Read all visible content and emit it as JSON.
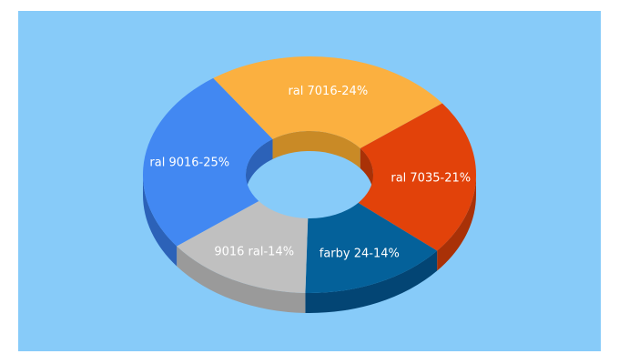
{
  "chart_data": {
    "type": "pie",
    "style": "3d-donut",
    "background": "#87cbf9",
    "categories": [
      "farby 24",
      "9016 ral",
      "ral 9016",
      "ral 7016",
      "ral 7035"
    ],
    "values": [
      14,
      14,
      25,
      24,
      21
    ],
    "labels": [
      "farby 24-14%",
      "9016 ral-14%",
      "ral 9016-25%",
      "ral 7016-24%",
      "ral 7035-21%"
    ],
    "colors": [
      "#04619a",
      "#c0c0c0",
      "#4288f2",
      "#fbb040",
      "#e2420a"
    ],
    "side_colors": [
      "#034574",
      "#9a9a9a",
      "#2c62b8",
      "#c98a26",
      "#a93107"
    ]
  }
}
